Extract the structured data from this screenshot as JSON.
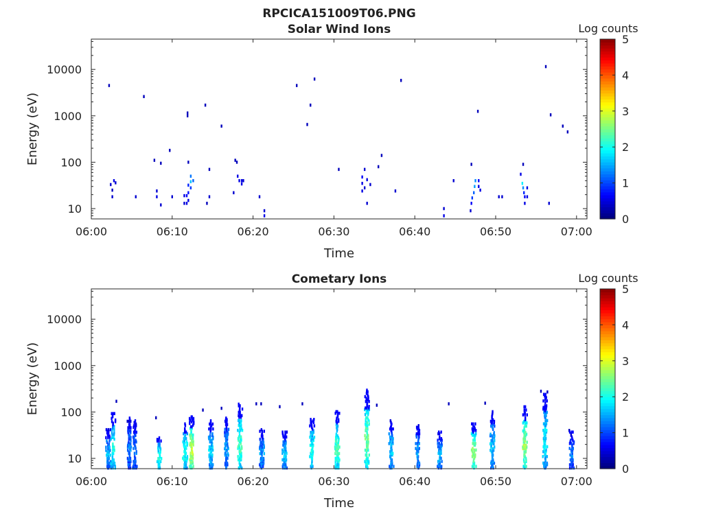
{
  "figure": {
    "title": "RPCICA151009T06.PNG"
  },
  "colormap": [
    "#00007f",
    "#0000ff",
    "#0080ff",
    "#00ffff",
    "#80ff80",
    "#ffff00",
    "#ff8000",
    "#ff0000",
    "#7f0000"
  ],
  "chart_data": [
    {
      "type": "heatmap",
      "title": "Solar Wind Ions",
      "xlabel": "Time",
      "ylabel": "Energy (eV)",
      "x_ticks": [
        "06:00",
        "06:10",
        "06:20",
        "06:30",
        "06:40",
        "06:50",
        "07:00"
      ],
      "y_ticks": [
        "10",
        "100",
        "1000",
        "10000"
      ],
      "y_scale": "log",
      "xlim_min": [
        0,
        60.5
      ],
      "ylim": [
        6,
        45000
      ],
      "colorbar": {
        "label": "Log counts",
        "ticks": [
          "0",
          "1",
          "2",
          "3",
          "4",
          "5"
        ],
        "range": [
          0,
          5
        ]
      },
      "points": [
        [
          2.2,
          4500,
          0.3
        ],
        [
          6.5,
          2600,
          0.3
        ],
        [
          14.1,
          1700,
          0.3
        ],
        [
          11.9,
          1000,
          0.3
        ],
        [
          11.9,
          1150,
          0.3
        ],
        [
          16.1,
          600,
          0.3
        ],
        [
          25.4,
          4500,
          0.3
        ],
        [
          26.7,
          650,
          0.3
        ],
        [
          27.1,
          1700,
          0.3
        ],
        [
          27.6,
          6200,
          0.3
        ],
        [
          38.3,
          5800,
          0.3
        ],
        [
          56.2,
          11500,
          0.3
        ],
        [
          47.8,
          1250,
          0.3
        ],
        [
          56.8,
          1050,
          0.3
        ],
        [
          58.3,
          600,
          0.3
        ],
        [
          58.9,
          450,
          0.3
        ],
        [
          7.8,
          110,
          0.3
        ],
        [
          8.6,
          95,
          0.3
        ],
        [
          9.7,
          180,
          0.3
        ],
        [
          12.0,
          100,
          0.3
        ],
        [
          14.6,
          70,
          0.3
        ],
        [
          17.8,
          110,
          0.3
        ],
        [
          18.0,
          100,
          0.3
        ],
        [
          30.6,
          70,
          0.3
        ],
        [
          33.8,
          70,
          0.4
        ],
        [
          35.9,
          140,
          0.3
        ],
        [
          35.5,
          80,
          0.3
        ],
        [
          47.0,
          90,
          0.3
        ],
        [
          53.4,
          90,
          0.3
        ],
        [
          2.4,
          33,
          0.4
        ],
        [
          2.6,
          25,
          0.3
        ],
        [
          2.6,
          18,
          0.4
        ],
        [
          2.8,
          40,
          0.5
        ],
        [
          3.0,
          36,
          0.4
        ],
        [
          5.5,
          18,
          0.4
        ],
        [
          8.1,
          24,
          0.4
        ],
        [
          8.1,
          18,
          0.5
        ],
        [
          8.6,
          12,
          0.4
        ],
        [
          10.0,
          18,
          0.4
        ],
        [
          11.5,
          19,
          0.5
        ],
        [
          11.5,
          13,
          0.4
        ],
        [
          11.8,
          19,
          0.6
        ],
        [
          11.8,
          13,
          0.5
        ],
        [
          12.0,
          22,
          0.7
        ],
        [
          12.0,
          32,
          0.8
        ],
        [
          12.3,
          50,
          1.2
        ],
        [
          12.3,
          38,
          1.6
        ],
        [
          12.6,
          40,
          1.1
        ],
        [
          12.3,
          28,
          0.9
        ],
        [
          12.0,
          15,
          0.5
        ],
        [
          14.6,
          18,
          0.4
        ],
        [
          14.3,
          13,
          0.3
        ],
        [
          17.6,
          22,
          0.4
        ],
        [
          18.1,
          50,
          0.5
        ],
        [
          18.3,
          40,
          0.5
        ],
        [
          18.6,
          40,
          0.5
        ],
        [
          18.6,
          34,
          0.5
        ],
        [
          18.8,
          40,
          0.4
        ],
        [
          20.8,
          18,
          0.4
        ],
        [
          21.4,
          9,
          0.4
        ],
        [
          21.4,
          7,
          0.5
        ],
        [
          33.5,
          48,
          0.6
        ],
        [
          33.5,
          35,
          0.5
        ],
        [
          33.5,
          24,
          0.5
        ],
        [
          33.8,
          28,
          0.4
        ],
        [
          34.1,
          42,
          0.5
        ],
        [
          34.5,
          33,
          0.4
        ],
        [
          34.1,
          13,
          0.4
        ],
        [
          37.6,
          24,
          0.4
        ],
        [
          43.6,
          10,
          0.4
        ],
        [
          43.6,
          7,
          0.5
        ],
        [
          44.8,
          40,
          0.4
        ],
        [
          46.9,
          9,
          0.4
        ],
        [
          47.0,
          13,
          0.6
        ],
        [
          47.1,
          17,
          0.9
        ],
        [
          47.3,
          22,
          1.1
        ],
        [
          47.4,
          30,
          1.4
        ],
        [
          47.5,
          40,
          1.3
        ],
        [
          47.9,
          40,
          0.6
        ],
        [
          47.9,
          30,
          0.5
        ],
        [
          48.1,
          25,
          0.5
        ],
        [
          50.4,
          18,
          0.4
        ],
        [
          50.8,
          18,
          0.4
        ],
        [
          53.1,
          55,
          0.5
        ],
        [
          53.3,
          35,
          1.8
        ],
        [
          53.4,
          28,
          1.3
        ],
        [
          53.5,
          22,
          0.8
        ],
        [
          53.6,
          18,
          0.6
        ],
        [
          53.6,
          13,
          0.5
        ],
        [
          53.9,
          28,
          0.5
        ],
        [
          53.9,
          18,
          0.5
        ],
        [
          56.6,
          13,
          0.4
        ]
      ]
    },
    {
      "type": "heatmap",
      "title": "Cometary Ions",
      "xlabel": "Time",
      "ylabel": "Energy (eV)",
      "x_ticks": [
        "06:00",
        "06:10",
        "06:20",
        "06:30",
        "06:40",
        "06:50",
        "07:00"
      ],
      "y_ticks": [
        "10",
        "100",
        "1000",
        "10000"
      ],
      "y_scale": "log",
      "xlim_min": [
        0,
        60.5
      ],
      "ylim": [
        6,
        45000
      ],
      "colorbar": {
        "label": "Log counts",
        "ticks": [
          "0",
          "1",
          "2",
          "3",
          "4",
          "5"
        ],
        "range": [
          0,
          5
        ]
      },
      "bursts": [
        {
          "t": 2.1,
          "top": 45,
          "peak": 1.5
        },
        {
          "t": 2.7,
          "top": 100,
          "peak": 2.0
        },
        {
          "t": 4.7,
          "top": 80,
          "peak": 1.2
        },
        {
          "t": 5.4,
          "top": 70,
          "peak": 1.2
        },
        {
          "t": 8.4,
          "top": 30,
          "peak": 2.0
        },
        {
          "t": 11.6,
          "top": 60,
          "peak": 2.0
        },
        {
          "t": 12.4,
          "top": 85,
          "peak": 2.8
        },
        {
          "t": 14.8,
          "top": 70,
          "peak": 1.6
        },
        {
          "t": 16.7,
          "top": 80,
          "peak": 1.4
        },
        {
          "t": 18.4,
          "top": 160,
          "peak": 2.2
        },
        {
          "t": 21.1,
          "top": 45,
          "peak": 1.4
        },
        {
          "t": 23.9,
          "top": 40,
          "peak": 1.6
        },
        {
          "t": 27.3,
          "top": 75,
          "peak": 2.0
        },
        {
          "t": 30.4,
          "top": 110,
          "peak": 2.2
        },
        {
          "t": 34.1,
          "top": 320,
          "peak": 2.4
        },
        {
          "t": 37.1,
          "top": 70,
          "peak": 1.6
        },
        {
          "t": 40.4,
          "top": 55,
          "peak": 1.4
        },
        {
          "t": 43.1,
          "top": 40,
          "peak": 1.5
        },
        {
          "t": 47.3,
          "top": 60,
          "peak": 2.6
        },
        {
          "t": 49.6,
          "top": 110,
          "peak": 1.6
        },
        {
          "t": 53.6,
          "top": 140,
          "peak": 2.6
        },
        {
          "t": 56.1,
          "top": 260,
          "peak": 1.8
        },
        {
          "t": 59.4,
          "top": 40,
          "peak": 1.2
        }
      ],
      "points": [
        [
          3.1,
          170,
          0.3
        ],
        [
          8.0,
          75,
          0.3
        ],
        [
          13.8,
          110,
          0.3
        ],
        [
          16.1,
          120,
          0.3
        ],
        [
          20.4,
          150,
          0.3
        ],
        [
          21.0,
          150,
          0.3
        ],
        [
          23.3,
          130,
          0.3
        ],
        [
          26.1,
          150,
          0.3
        ],
        [
          35.3,
          140,
          0.3
        ],
        [
          44.2,
          150,
          0.3
        ],
        [
          48.7,
          155,
          0.3
        ],
        [
          55.6,
          280,
          0.3
        ],
        [
          56.4,
          270,
          0.3
        ],
        [
          59.1,
          40,
          0.3
        ]
      ]
    }
  ]
}
